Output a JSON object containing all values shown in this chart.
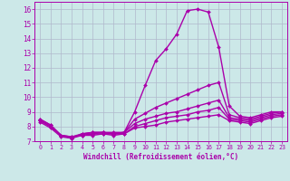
{
  "xlabel": "Windchill (Refroidissement éolien,°C)",
  "xlim": [
    -0.5,
    23.5
  ],
  "ylim": [
    7,
    16.5
  ],
  "xticks": [
    0,
    1,
    2,
    3,
    4,
    5,
    6,
    7,
    8,
    9,
    10,
    11,
    12,
    13,
    14,
    15,
    16,
    17,
    18,
    19,
    20,
    21,
    22,
    23
  ],
  "yticks": [
    7,
    8,
    9,
    10,
    11,
    12,
    13,
    14,
    15,
    16
  ],
  "background_color": "#cce8e8",
  "grid_color": "#b0b8cc",
  "line_color": "#aa00aa",
  "curves": [
    [
      8.5,
      8.1,
      7.4,
      7.2,
      7.5,
      7.6,
      7.6,
      7.6,
      7.6,
      9.0,
      10.8,
      12.5,
      13.3,
      14.3,
      15.9,
      16.0,
      15.8,
      13.4,
      9.4,
      8.7,
      8.6,
      8.8,
      9.0,
      9.0
    ],
    [
      8.5,
      8.1,
      7.4,
      7.2,
      7.5,
      7.6,
      7.6,
      7.5,
      7.6,
      8.5,
      8.9,
      9.3,
      9.6,
      9.9,
      10.2,
      10.5,
      10.8,
      11.0,
      8.8,
      8.6,
      8.5,
      8.7,
      8.9,
      9.0
    ],
    [
      8.4,
      8.0,
      7.4,
      7.3,
      7.5,
      7.5,
      7.6,
      7.5,
      7.6,
      8.2,
      8.5,
      8.7,
      8.9,
      9.0,
      9.2,
      9.4,
      9.6,
      9.8,
      8.6,
      8.5,
      8.4,
      8.6,
      8.8,
      8.9
    ],
    [
      8.4,
      8.0,
      7.4,
      7.3,
      7.4,
      7.5,
      7.5,
      7.5,
      7.5,
      8.0,
      8.2,
      8.4,
      8.6,
      8.7,
      8.8,
      9.0,
      9.1,
      9.3,
      8.5,
      8.4,
      8.3,
      8.5,
      8.7,
      8.8
    ],
    [
      8.3,
      7.9,
      7.3,
      7.2,
      7.4,
      7.4,
      7.5,
      7.4,
      7.5,
      7.9,
      8.0,
      8.1,
      8.3,
      8.4,
      8.5,
      8.6,
      8.7,
      8.8,
      8.4,
      8.3,
      8.2,
      8.4,
      8.6,
      8.7
    ]
  ]
}
